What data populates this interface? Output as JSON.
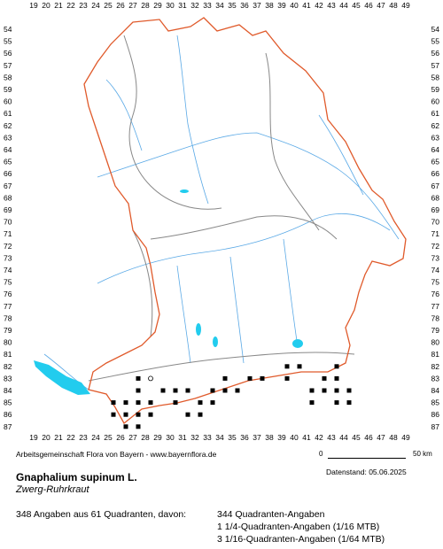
{
  "map": {
    "x_ticks": [
      "19",
      "20",
      "21",
      "22",
      "23",
      "24",
      "25",
      "26",
      "27",
      "28",
      "29",
      "30",
      "31",
      "32",
      "33",
      "34",
      "35",
      "36",
      "37",
      "38",
      "39",
      "40",
      "41",
      "42",
      "43",
      "44",
      "45",
      "46",
      "47",
      "48",
      "49"
    ],
    "y_ticks": [
      "54",
      "55",
      "56",
      "57",
      "58",
      "59",
      "60",
      "61",
      "62",
      "63",
      "64",
      "65",
      "66",
      "67",
      "68",
      "69",
      "70",
      "71",
      "72",
      "73",
      "74",
      "75",
      "76",
      "77",
      "78",
      "79",
      "80",
      "81",
      "82",
      "83",
      "84",
      "85",
      "86",
      "87"
    ],
    "colors": {
      "border": "#e05a2b",
      "regions": "#888888",
      "rivers": "#5aa9e6",
      "lakes": "#22ccee",
      "marks": "#000000"
    },
    "occurrences_note": "quadrant squares mapped in grid units (x column, y row)",
    "occurrences": [
      [
        27,
        85
      ],
      [
        27,
        86
      ],
      [
        27,
        87
      ],
      [
        28,
        85
      ],
      [
        28,
        86
      ],
      [
        28,
        87
      ],
      [
        29,
        85
      ],
      [
        29,
        86
      ],
      [
        26,
        85
      ],
      [
        26,
        86
      ],
      [
        28,
        84
      ],
      [
        28,
        83
      ],
      [
        30,
        84
      ],
      [
        31,
        84
      ],
      [
        31,
        85
      ],
      [
        32,
        84
      ],
      [
        32,
        86
      ],
      [
        33,
        85
      ],
      [
        33,
        86
      ],
      [
        34,
        85
      ],
      [
        34,
        84
      ],
      [
        35,
        83
      ],
      [
        35,
        84
      ],
      [
        36,
        84
      ],
      [
        37,
        83
      ],
      [
        38,
        83
      ],
      [
        40,
        82
      ],
      [
        40,
        83
      ],
      [
        41,
        82
      ],
      [
        43,
        83
      ],
      [
        43,
        84
      ],
      [
        44,
        83
      ],
      [
        44,
        84
      ],
      [
        44,
        85
      ],
      [
        45,
        84
      ],
      [
        45,
        85
      ],
      [
        42,
        85
      ],
      [
        42,
        84
      ],
      [
        44,
        82
      ]
    ],
    "hollow": [
      [
        29,
        83
      ]
    ]
  },
  "footer": {
    "credit": "Arbeitsgemeinschaft Flora von Bayern - www.bayernflora.de",
    "scale_zero": "0",
    "scale_label": "50 km",
    "datestamp": "Datenstand: 05.06.2025",
    "species": "Gnaphalium supinum L.",
    "common_name": "Zwerg-Ruhrkraut",
    "summary": "348 Angaben aus 61 Quadranten, davon:",
    "detail1": "344 Quadranten-Angaben",
    "detail2": "1 1/4-Quadranten-Angaben (1/16 MTB)",
    "detail3": "3 1/16-Quadranten-Angaben (1/64 MTB)"
  }
}
